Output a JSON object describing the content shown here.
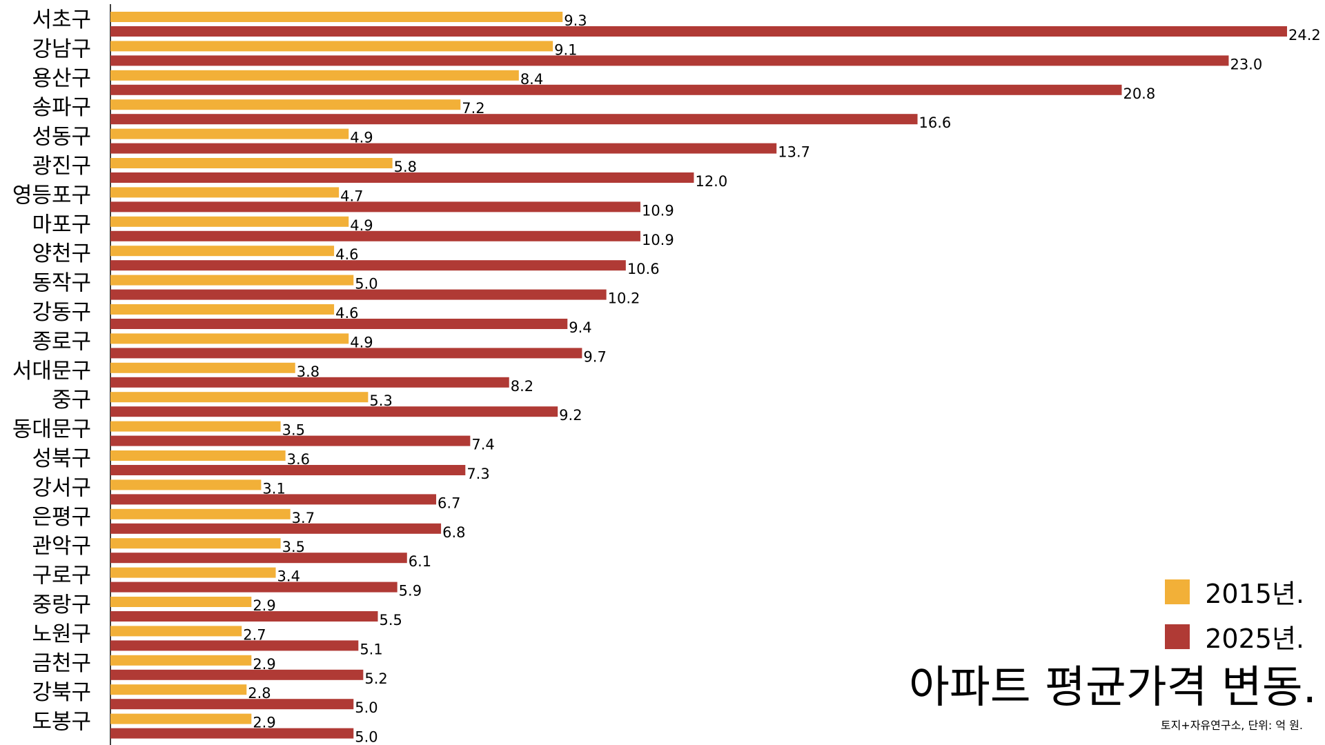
{
  "chart_data": {
    "type": "bar",
    "orientation": "horizontal",
    "title": "아파트 평균가격 변동.",
    "note": "토지+자유연구소, 단위: 억 원.",
    "categories": [
      "서초구",
      "강남구",
      "용산구",
      "송파구",
      "성동구",
      "광진구",
      "영등포구",
      "마포구",
      "양천구",
      "동작구",
      "강동구",
      "종로구",
      "서대문구",
      "중구",
      "동대문구",
      "성북구",
      "강서구",
      "은평구",
      "관악구",
      "구로구",
      "중랑구",
      "노원구",
      "금천구",
      "강북구",
      "도봉구"
    ],
    "series": [
      {
        "name": "2015년.",
        "color": "#f2b038",
        "values": [
          9.3,
          9.1,
          8.4,
          7.2,
          4.9,
          5.8,
          4.7,
          4.9,
          4.6,
          5.0,
          4.6,
          4.9,
          3.8,
          5.3,
          3.5,
          3.6,
          3.1,
          3.7,
          3.5,
          3.4,
          2.9,
          2.7,
          2.9,
          2.8,
          2.9
        ]
      },
      {
        "name": "2025년.",
        "color": "#b03a35",
        "values": [
          24.2,
          23.0,
          20.8,
          16.6,
          13.7,
          12.0,
          10.9,
          10.9,
          10.6,
          10.2,
          9.4,
          9.7,
          8.2,
          9.2,
          7.4,
          7.3,
          6.7,
          6.8,
          6.1,
          5.9,
          5.5,
          5.1,
          5.2,
          5.0,
          5.0
        ]
      }
    ],
    "xlim": [
      0,
      24.2
    ],
    "grid": false,
    "legend_position": "bottom-right"
  }
}
